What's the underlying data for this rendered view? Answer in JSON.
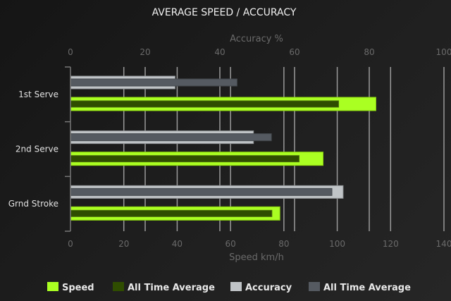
{
  "chart_data": {
    "type": "bar",
    "orientation": "horizontal",
    "title": "AVERAGE SPEED / ACCURACY",
    "categories": [
      "1st Serve",
      "2nd Serve",
      "Grnd Stroke"
    ],
    "x_axis_bottom": {
      "label": "Speed km/h",
      "range": [
        0,
        140
      ],
      "ticks": [
        0,
        20,
        40,
        60,
        80,
        100,
        120,
        140
      ]
    },
    "x_axis_top": {
      "label": "Accuracy %",
      "range": [
        0,
        100
      ],
      "ticks": [
        0,
        20,
        40,
        60,
        80,
        100
      ]
    },
    "grid": true,
    "legend_position": "bottom",
    "series": [
      {
        "name": "Speed",
        "axis": "speed",
        "values": [
          114.5,
          94.7,
          78.5
        ],
        "color": "#aaff22"
      },
      {
        "name": "All Time Average",
        "axis": "speed",
        "values": [
          100.5,
          85.7,
          75.5
        ],
        "color": "#2f4d00"
      },
      {
        "name": "Accuracy",
        "axis": "accuracy",
        "values": [
          28,
          49,
          73
        ],
        "color": "#c0c4c7"
      },
      {
        "name": "All Time Average",
        "axis": "accuracy",
        "values": [
          44.6,
          53.8,
          70
        ],
        "color": "#555a61"
      }
    ]
  }
}
